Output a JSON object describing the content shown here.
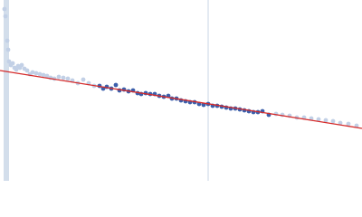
{
  "chart_data": {
    "type": "scatter",
    "xlim": [
      0,
      400
    ],
    "ylim": [
      0,
      200
    ],
    "series": [
      {
        "color": "#c2d0e6",
        "x": [
          5,
          6,
          8,
          9,
          10,
          12,
          14,
          16,
          18,
          20,
          22,
          24,
          27,
          30,
          33,
          36,
          40,
          44,
          48,
          52,
          56,
          60,
          65,
          70,
          75,
          80,
          86,
          92,
          98,
          104
        ],
        "values": [
          190,
          182,
          155,
          145,
          132,
          128,
          130,
          125,
          123,
          127,
          125,
          128,
          124,
          122,
          118,
          120,
          119,
          118,
          117,
          116,
          114,
          113,
          115,
          114,
          113,
          111,
          108,
          112,
          108,
          105
        ]
      },
      {
        "color": "#3c5fab",
        "x": [
          110,
          114,
          118,
          123,
          128,
          132,
          137,
          142,
          147,
          152,
          156,
          161,
          166,
          171,
          176,
          181,
          186,
          190,
          195,
          200,
          205,
          210,
          215,
          220,
          225,
          230,
          235,
          240,
          245,
          250,
          255,
          260,
          265,
          270,
          275,
          280,
          285,
          290,
          297
        ],
        "values": [
          105,
          102,
          104,
          102,
          106,
          100,
          101,
          99,
          100,
          97,
          96,
          97,
          96,
          96,
          94,
          93,
          94,
          91,
          91,
          89,
          88,
          87,
          87,
          85,
          84,
          85,
          83,
          83,
          82,
          81,
          80,
          80,
          79,
          78,
          77,
          76,
          76,
          77,
          73
        ]
      },
      {
        "color": "#c2d0e6",
        "x": [
          305,
          312,
          320,
          328,
          336,
          344,
          352,
          360,
          368,
          376,
          385,
          394
        ],
        "values": [
          74,
          73,
          72,
          70,
          70,
          69,
          68,
          67,
          66,
          64,
          63,
          61
        ]
      }
    ],
    "fit": {
      "color": "#d42a2a",
      "x": [
        0,
        400
      ],
      "values": [
        122,
        58
      ]
    }
  }
}
